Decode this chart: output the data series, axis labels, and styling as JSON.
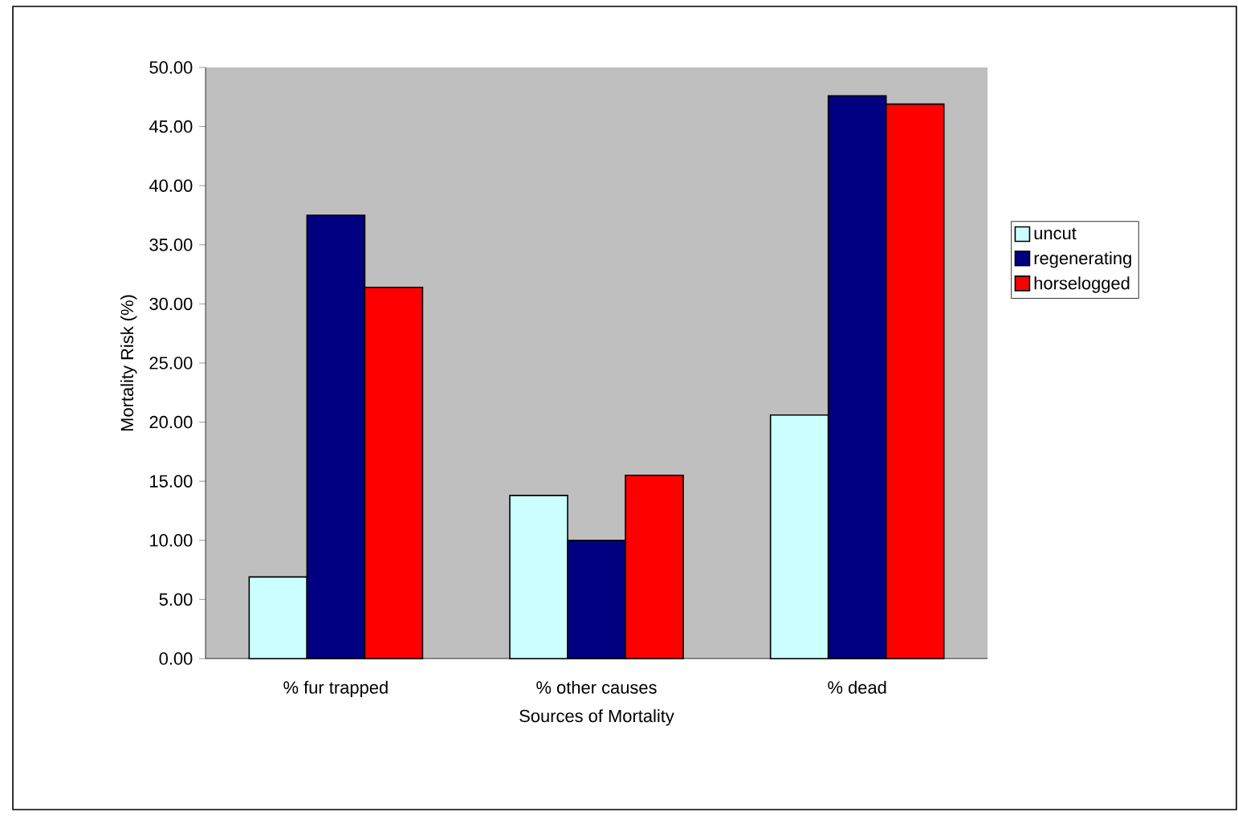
{
  "chart_data": {
    "type": "bar",
    "xlabel": "Sources of Mortality",
    "ylabel": "Mortality Risk (%)",
    "categories": [
      "% fur trapped",
      "% other causes",
      "% dead"
    ],
    "series": [
      {
        "name": "uncut",
        "color": "#ccffff",
        "values": [
          6.9,
          13.8,
          20.6
        ]
      },
      {
        "name": "regenerating",
        "color": "#000080",
        "values": [
          37.5,
          10.0,
          47.6
        ]
      },
      {
        "name": "horselogged",
        "color": "#ff0000",
        "values": [
          31.4,
          15.5,
          46.9
        ]
      }
    ],
    "ylim": [
      0,
      50
    ],
    "yticks": [
      {
        "value": 0,
        "label": "0.00"
      },
      {
        "value": 5,
        "label": "5.00"
      },
      {
        "value": 10,
        "label": "10.00"
      },
      {
        "value": 15,
        "label": "15.00"
      },
      {
        "value": 20,
        "label": "20.00"
      },
      {
        "value": 25,
        "label": "25.00"
      },
      {
        "value": 30,
        "label": "30.00"
      },
      {
        "value": 35,
        "label": "35.00"
      },
      {
        "value": 40,
        "label": "40.00"
      },
      {
        "value": 45,
        "label": "45.00"
      },
      {
        "value": 50,
        "label": "50.00"
      }
    ],
    "grid": false,
    "legend": "right"
  }
}
